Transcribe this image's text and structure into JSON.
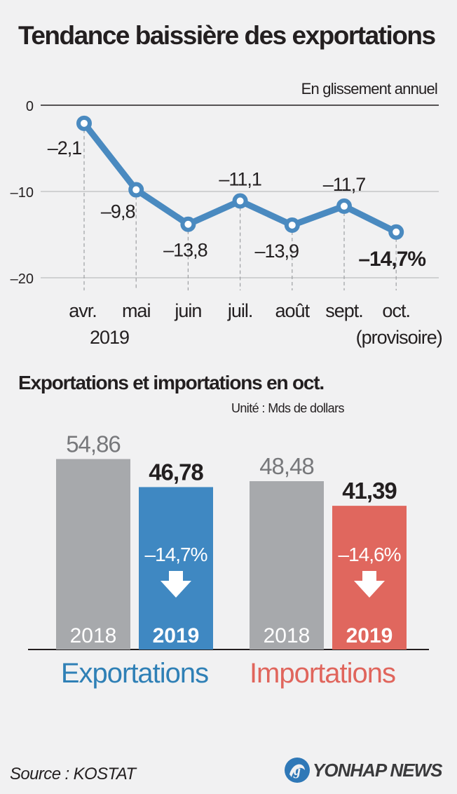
{
  "chart_data": [
    {
      "type": "line",
      "title": "Tendance baissière des exportations",
      "unit_label": "En glissement annuel",
      "categories": [
        "avr.",
        "mai",
        "juin",
        "juil.",
        "août",
        "sept.",
        "oct."
      ],
      "year_label": "2019",
      "last_category_note": "(provisoire)",
      "values": [
        -2.1,
        -9.8,
        -13.8,
        -11.1,
        -13.9,
        -11.7,
        -14.7
      ],
      "value_labels": [
        "–2,1",
        "–9,8",
        "–13,8",
        "–11,1",
        "–13,9",
        "–11,7",
        "–14,7%"
      ],
      "y_ticks": [
        0,
        -10,
        -20
      ],
      "y_tick_labels": [
        "0",
        "–10",
        "–20"
      ],
      "ylim": [
        -20,
        0
      ],
      "grid": true,
      "color": "#4a8ac0"
    },
    {
      "type": "bar",
      "title": "Exportations et importations en oct.",
      "unit_label": "Unité : Mds de dollars",
      "groups": [
        {
          "name": "Exportations",
          "color": "#2f80b6",
          "bars": [
            {
              "year": "2018",
              "value": 54.86,
              "label": "54,86",
              "color": "#a7a9ac"
            },
            {
              "year": "2019",
              "value": 46.78,
              "label": "46,78",
              "color": "#3f88c2"
            }
          ],
          "change": "–14,7%"
        },
        {
          "name": "Importations",
          "color": "#e0655c",
          "bars": [
            {
              "year": "2018",
              "value": 48.48,
              "label": "48,48",
              "color": "#a7a9ac"
            },
            {
              "year": "2019",
              "value": 41.39,
              "label": "41,39",
              "color": "#e0675e"
            }
          ],
          "change": "–14,6%"
        }
      ],
      "ylim": [
        0,
        60
      ]
    }
  ],
  "source": "Source : KOSTAT",
  "logo": "YONHAP NEWS"
}
